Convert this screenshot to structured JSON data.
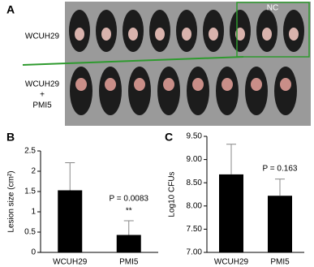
{
  "photo_panel": {
    "panel_label": "A",
    "group_label": "NC",
    "row_labels": [
      [
        "WCUH29"
      ],
      [
        "WCUH29",
        "+",
        "PMI5"
      ]
    ]
  },
  "chart_data": [
    {
      "type": "bar",
      "panel_label": "B",
      "y_label": "Lesion size (cm²)",
      "categories": [
        "WCUH29",
        "PMI5"
      ],
      "values": [
        1.53,
        0.43
      ],
      "errors": [
        0.68,
        0.35
      ],
      "color": "#000000",
      "ylim": [
        0,
        2.5
      ],
      "yticks": [
        0,
        0.5,
        1,
        1.5,
        2,
        2.5
      ],
      "annotations": [
        "P = 0.0083",
        "**"
      ]
    },
    {
      "type": "bar",
      "panel_label": "C",
      "y_label": "Log10 CFUs",
      "categories": [
        "WCUH29",
        "PMI5"
      ],
      "values": [
        8.68,
        8.22
      ],
      "errors": [
        0.65,
        0.36
      ],
      "color": "#000000",
      "ylim": [
        7,
        9.5
      ],
      "yticks": [
        {
          "value": 7,
          "label": "7.00"
        },
        {
          "value": 7.5,
          "label": "7.50"
        },
        {
          "value": 8,
          "label": "8.00"
        },
        {
          "value": 8.5,
          "label": "8.50"
        },
        {
          "value": 9,
          "label": "9.00"
        },
        {
          "value": 9.5,
          "label": "9.50"
        }
      ],
      "annotations": [
        "P = 0.163"
      ]
    }
  ]
}
